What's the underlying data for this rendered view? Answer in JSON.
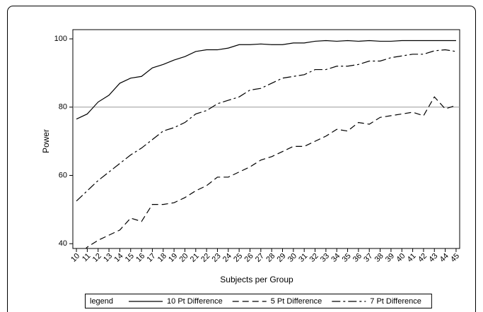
{
  "chart_data": {
    "type": "line",
    "x_label": "Subjects per Group",
    "y_label": "Power",
    "legend_title": "legend",
    "x": [
      10,
      11,
      12,
      13,
      14,
      15,
      16,
      17,
      18,
      19,
      20,
      21,
      22,
      23,
      24,
      25,
      26,
      27,
      28,
      29,
      30,
      31,
      32,
      33,
      34,
      35,
      36,
      37,
      38,
      39,
      40,
      41,
      42,
      43,
      44,
      45
    ],
    "xlim": [
      9.67,
      45.33
    ],
    "xticks": [
      10,
      11,
      12,
      13,
      14,
      15,
      16,
      17,
      18,
      19,
      20,
      21,
      22,
      23,
      24,
      25,
      26,
      27,
      28,
      29,
      30,
      31,
      32,
      33,
      34,
      35,
      36,
      37,
      38,
      39,
      40,
      41,
      42,
      43,
      44,
      45
    ],
    "ylim": [
      38.6,
      102.7
    ],
    "yticks": [
      40,
      60,
      80,
      100
    ],
    "reference_line": {
      "value": 80,
      "color": "#999999"
    },
    "legend_position": "bottom",
    "series": [
      {
        "name": "10 Pt Difference",
        "color": "#000000",
        "style": "solid",
        "values": [
          76.5,
          78,
          81.5,
          83.5,
          87,
          88.5,
          89,
          91.5,
          92.5,
          93.8,
          94.8,
          96.3,
          96.8,
          96.8,
          97.3,
          98.3,
          98.3,
          98.5,
          98.3,
          98.3,
          98.8,
          98.8,
          99.3,
          99.5,
          99.3,
          99.5,
          99.3,
          99.5,
          99.3,
          99.3,
          99.5,
          99.5,
          99.5,
          99.5,
          99.5,
          99.5
        ]
      },
      {
        "name": "5 Pt Difference",
        "color": "#000000",
        "style": "dashed",
        "values": [
          36,
          39,
          41,
          42.5,
          44,
          47.5,
          46.5,
          51.5,
          51.5,
          52,
          53.5,
          55.5,
          57,
          59.5,
          59.5,
          61,
          62.5,
          64.5,
          65.5,
          67,
          68.5,
          68.5,
          70,
          71.5,
          73.5,
          73,
          75.5,
          75,
          77,
          77.5,
          78,
          78.5,
          77.5,
          83,
          79.5,
          80.5
        ]
      },
      {
        "name": "7 Pt Difference",
        "color": "#000000",
        "style": "dashdot",
        "values": [
          52.5,
          55.5,
          58.5,
          61,
          63.5,
          66,
          68,
          70.5,
          73,
          74,
          75.5,
          78,
          79,
          81,
          82,
          83,
          85,
          85.5,
          87,
          88.5,
          89,
          89.5,
          91,
          91,
          92,
          92,
          92.5,
          93.5,
          93.5,
          94.5,
          95,
          95.5,
          95.5,
          96.5,
          96.8,
          96.3
        ]
      }
    ]
  }
}
